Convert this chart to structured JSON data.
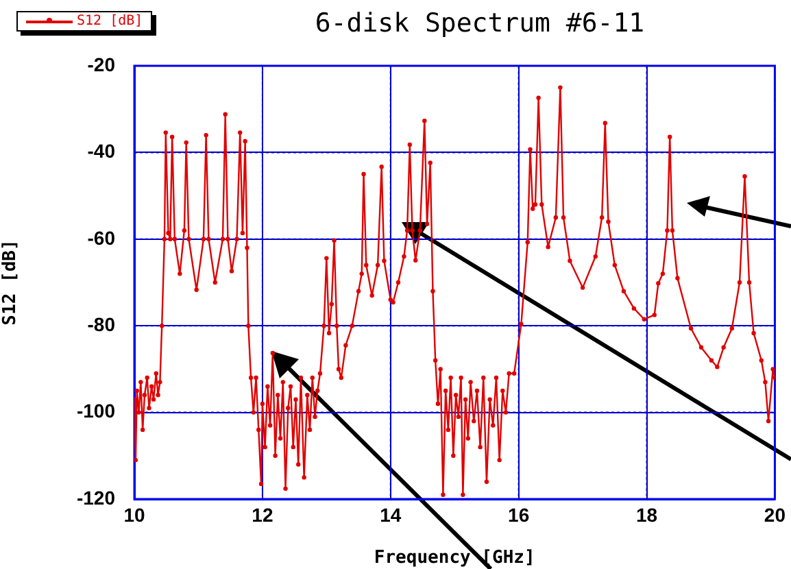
{
  "chart_data": {
    "type": "line",
    "title": "6-disk Spectrum  #6-11",
    "xlabel": "Frequency [GHz]",
    "ylabel": "S12 [dB]",
    "xlim": [
      10,
      20
    ],
    "xticks": [
      10,
      12,
      14,
      16,
      18,
      20
    ],
    "ylim": [
      -120,
      -20
    ],
    "yticks": [
      -120,
      -100,
      -80,
      -60,
      -40,
      -20
    ],
    "grid": true,
    "legend": "top left",
    "marker": "circle",
    "line_style": "solid",
    "series": [
      {
        "name": "S12 [dB]",
        "color": "#e00000",
        "x": [
          10,
          10.02,
          10.04,
          10.07,
          10.1,
          10.13,
          10.16,
          10.2,
          10.23,
          10.27,
          10.3,
          10.34,
          10.37,
          10.4,
          10.43,
          10.47,
          10.49,
          10.53,
          10.56,
          10.59,
          10.63,
          10.71,
          10.78,
          10.81,
          10.85,
          10.97,
          11.08,
          11.12,
          11.16,
          11.26,
          11.38,
          11.42,
          11.46,
          11.52,
          11.6,
          11.65,
          11.69,
          11.73,
          11.76,
          11.78,
          11.82,
          11.86,
          11.9,
          11.94,
          11.98,
          12.0,
          12.04,
          12.08,
          12.12,
          12.16,
          12.2,
          12.24,
          12.28,
          12.32,
          12.36,
          12.4,
          12.44,
          12.48,
          12.52,
          12.56,
          12.6,
          12.65,
          12.7,
          12.74,
          12.78,
          12.82,
          12.86,
          12.9,
          12.96,
          13.0,
          13.04,
          13.08,
          13.12,
          13.16,
          13.19,
          13.23,
          13.3,
          13.4,
          13.5,
          13.55,
          13.58,
          13.62,
          13.71,
          13.8,
          13.86,
          13.9,
          14.0,
          14.04,
          14.12,
          14.21,
          14.26,
          14.3,
          14.34,
          14.39,
          14.46,
          14.53,
          14.57,
          14.62,
          14.66,
          14.7,
          14.74,
          14.78,
          14.82,
          14.86,
          14.9,
          14.94,
          14.98,
          15.02,
          15.06,
          15.1,
          15.13,
          15.17,
          15.21,
          15.25,
          15.3,
          15.35,
          15.4,
          15.45,
          15.5,
          15.55,
          15.6,
          15.65,
          15.7,
          15.75,
          15.8,
          15.85,
          15.93,
          16.04,
          16.14,
          16.18,
          16.22,
          16.26,
          16.31,
          16.36,
          16.46,
          16.58,
          16.65,
          16.7,
          16.8,
          17.0,
          17.2,
          17.3,
          17.35,
          17.4,
          17.5,
          17.64,
          17.8,
          17.96,
          18.12,
          18.18,
          18.25,
          18.32,
          18.36,
          18.4,
          18.48,
          18.69,
          18.85,
          19.01,
          19.1,
          19.2,
          19.33,
          19.45,
          19.53,
          19.6,
          19.67,
          19.79,
          19.85,
          19.9,
          19.97,
          20
        ],
        "values": [
          -97,
          -111,
          -95,
          -100,
          -93,
          -104,
          -96,
          -92,
          -99,
          -94,
          -97,
          -91,
          -96,
          -93,
          -80,
          -60,
          -35.4,
          -58.6,
          -60,
          -36.4,
          -60,
          -68,
          -58,
          -37.7,
          -60,
          -71.7,
          -60,
          -36,
          -60,
          -70,
          -60,
          -31.2,
          -60,
          -67.4,
          -60,
          -35.4,
          -58.6,
          -37.4,
          -62,
          -80,
          -92,
          -100,
          -92,
          -104,
          -116.5,
          -98,
          -108,
          -94,
          -103,
          -86.3,
          -110,
          -96,
          -106,
          -93,
          -117.6,
          -99,
          -94,
          -108,
          -97,
          -112,
          -92,
          -115,
          -96,
          -104,
          -92,
          -101,
          -95,
          -91,
          -80,
          -64.4,
          -81.7,
          -75,
          -60.3,
          -80,
          -90,
          -92,
          -84.5,
          -80,
          -72,
          -68,
          -45,
          -66,
          -73,
          -66,
          -43.3,
          -65,
          -74,
          -74.6,
          -70,
          -64,
          -58,
          -38.2,
          -58,
          -64.9,
          -58,
          -32.7,
          -56.5,
          -42.4,
          -72,
          -88,
          -98,
          -90,
          -119,
          -95,
          -104,
          -92,
          -110,
          -96,
          -101,
          -92,
          -119,
          -97,
          -106,
          -93,
          -102,
          -95,
          -108,
          -92,
          -116,
          -97,
          -103,
          -92,
          -111,
          -95,
          -100,
          -91,
          -91,
          -79.6,
          -60.7,
          -39.3,
          -53,
          -52,
          -27.4,
          -52,
          -61.8,
          -55,
          -25,
          -55,
          -65,
          -71.2,
          -64,
          -55,
          -33.2,
          -56,
          -66,
          -72,
          -76,
          -78.5,
          -77.5,
          -70.2,
          -68,
          -58,
          -36.4,
          -58,
          -69,
          -80.6,
          -85,
          -88,
          -89.5,
          -85,
          -80.6,
          -70,
          -45.5,
          -70,
          -81.7,
          -88,
          -93,
          -102,
          -90,
          -92
        ]
      }
    ]
  }
}
